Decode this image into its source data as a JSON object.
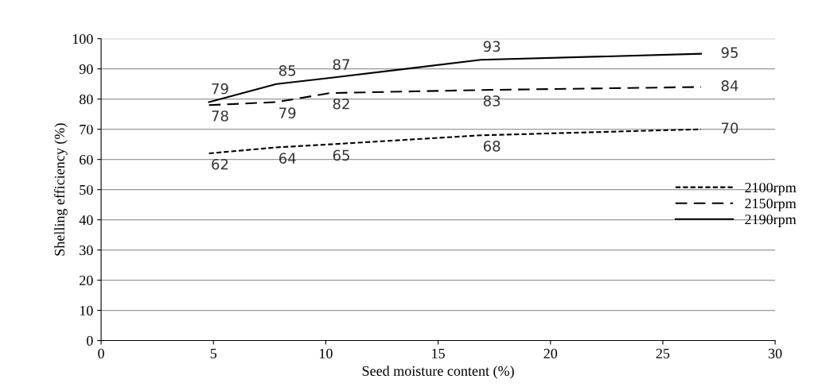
{
  "chart_data": {
    "type": "line",
    "xlabel": "Seed moisture content (%)",
    "ylabel": "Shelling efficiency (%)",
    "x": [
      4.8,
      7.8,
      10.2,
      16.9,
      26.7
    ],
    "series": [
      {
        "name": "2100rpm",
        "color": "#000000",
        "line_style": "dotted",
        "values": [
          62,
          64,
          65,
          68,
          70
        ]
      },
      {
        "name": "2150rpm",
        "color": "#000000",
        "line_style": "dashed",
        "values": [
          78,
          79,
          82,
          83,
          84
        ]
      },
      {
        "name": "2190rpm",
        "color": "#000000",
        "line_style": "solid",
        "values": [
          79,
          85,
          87,
          93,
          95
        ]
      }
    ],
    "xlim": [
      0,
      30
    ],
    "xticks": [
      0,
      5,
      10,
      15,
      20,
      25,
      30
    ],
    "ylim": [
      0,
      100
    ],
    "yticks": [
      0,
      10,
      20,
      30,
      40,
      50,
      60,
      70,
      80,
      90,
      100
    ],
    "grid": "y",
    "legend": "right",
    "marker": "none",
    "data_labels": true
  }
}
